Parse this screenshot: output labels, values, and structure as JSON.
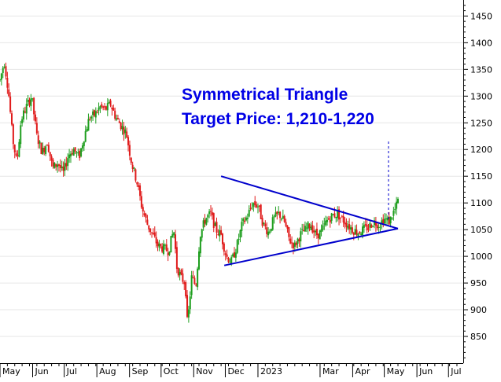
{
  "chart_data": {
    "type": "candlestick",
    "annotation_lines": [
      "Symmetrical Triangle",
      "Target Price: 1,210-1,220"
    ],
    "colors": {
      "up": "#1e9e1e",
      "down": "#e01b1b",
      "pattern": "#0000cc",
      "annotation": "#0000e6",
      "grid": "#e6e6e6"
    },
    "y_axis": {
      "position": "right",
      "ylim": [
        800,
        1480
      ],
      "ticks": [
        850,
        900,
        950,
        1000,
        1050,
        1100,
        1150,
        1200,
        1250,
        1300,
        1350,
        1400,
        1450
      ]
    },
    "x_axis": {
      "labels": [
        "May",
        "Jun",
        "Jul",
        "Aug",
        "Sep",
        "Oct",
        "Nov",
        "Dec",
        "2023",
        "Mar",
        "Apr",
        "May",
        "Jun",
        "Jul"
      ],
      "range_days": [
        0,
        440
      ],
      "label_positions_days": [
        0,
        31,
        61,
        92,
        123,
        153,
        184,
        214,
        245,
        304,
        335,
        365,
        396,
        426
      ]
    },
    "series_anchors": [
      [
        0,
        1330
      ],
      [
        4,
        1365
      ],
      [
        8,
        1310
      ],
      [
        12,
        1220
      ],
      [
        16,
        1175
      ],
      [
        20,
        1255
      ],
      [
        25,
        1280
      ],
      [
        30,
        1300
      ],
      [
        35,
        1225
      ],
      [
        40,
        1195
      ],
      [
        45,
        1215
      ],
      [
        50,
        1165
      ],
      [
        55,
        1175
      ],
      [
        60,
        1155
      ],
      [
        65,
        1190
      ],
      [
        70,
        1200
      ],
      [
        75,
        1185
      ],
      [
        80,
        1225
      ],
      [
        85,
        1260
      ],
      [
        90,
        1265
      ],
      [
        95,
        1280
      ],
      [
        100,
        1275
      ],
      [
        105,
        1285
      ],
      [
        110,
        1260
      ],
      [
        115,
        1245
      ],
      [
        120,
        1230
      ],
      [
        125,
        1175
      ],
      [
        130,
        1140
      ],
      [
        135,
        1090
      ],
      [
        140,
        1060
      ],
      [
        145,
        1040
      ],
      [
        150,
        1020
      ],
      [
        155,
        1015
      ],
      [
        160,
        1010
      ],
      [
        165,
        1050
      ],
      [
        168,
        980
      ],
      [
        172,
        960
      ],
      [
        176,
        950
      ],
      [
        178,
        870
      ],
      [
        182,
        960
      ],
      [
        186,
        945
      ],
      [
        190,
        1040
      ],
      [
        195,
        1070
      ],
      [
        200,
        1080
      ],
      [
        205,
        1050
      ],
      [
        210,
        1040
      ],
      [
        215,
        1000
      ],
      [
        220,
        990
      ],
      [
        225,
        1020
      ],
      [
        230,
        1060
      ],
      [
        235,
        1075
      ],
      [
        240,
        1100
      ],
      [
        245,
        1095
      ],
      [
        250,
        1060
      ],
      [
        255,
        1045
      ],
      [
        260,
        1070
      ],
      [
        265,
        1080
      ],
      [
        270,
        1065
      ],
      [
        275,
        1030
      ],
      [
        280,
        1020
      ],
      [
        285,
        1040
      ],
      [
        290,
        1050
      ],
      [
        295,
        1060
      ],
      [
        300,
        1040
      ],
      [
        305,
        1045
      ],
      [
        310,
        1065
      ],
      [
        315,
        1075
      ],
      [
        320,
        1080
      ],
      [
        325,
        1070
      ],
      [
        330,
        1060
      ],
      [
        335,
        1050
      ],
      [
        340,
        1045
      ],
      [
        345,
        1050
      ],
      [
        350,
        1055
      ],
      [
        355,
        1065
      ],
      [
        360,
        1060
      ],
      [
        365,
        1070
      ],
      [
        370,
        1065
      ],
      [
        373,
        1080
      ],
      [
        376,
        1090
      ],
      [
        378,
        1105
      ]
    ],
    "triangle": {
      "upper_line": [
        [
          210,
          1150
        ],
        [
          378,
          1052
        ]
      ],
      "lower_line": [
        [
          213,
          983
        ],
        [
          378,
          1052
        ]
      ],
      "target_line": [
        [
          369,
          1215
        ],
        [
          369,
          1065
        ]
      ]
    }
  }
}
